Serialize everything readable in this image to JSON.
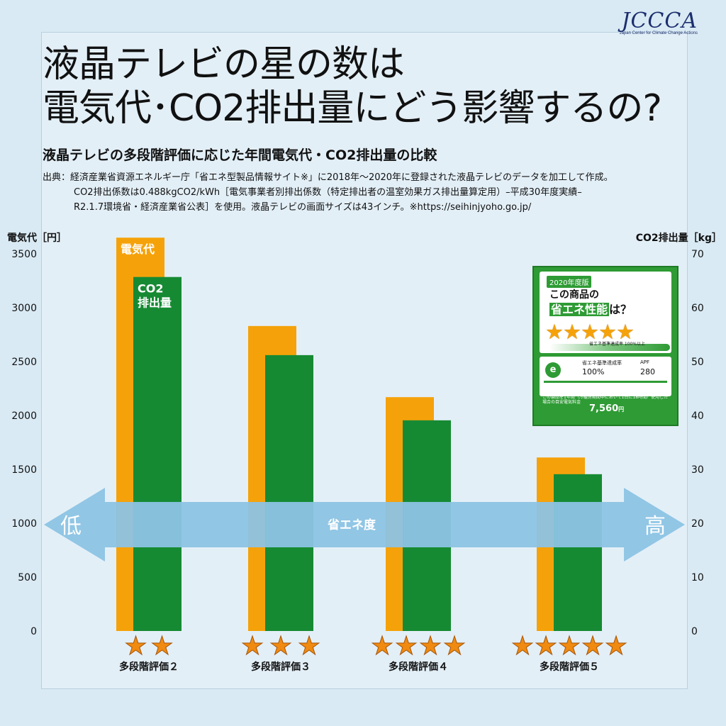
{
  "logo": {
    "text": "JCCCA",
    "sub": "Japan Center for Climate Change Actions"
  },
  "title": {
    "line1": "液晶テレビの星の数は",
    "line2": "電気代･CO2排出量にどう影響するの?"
  },
  "subtitle": "液晶テレビの多段階評価に応じた年間電気代・CO2排出量の比較",
  "source": {
    "line1": "出典：経済産業省資源エネルギー庁「省エネ型製品情報サイト※」に2018年～2020年に登録された液晶テレビのデータを加工して作成。",
    "line2": "CO2排出係数は0.488kgCO2/kWh［電気事業者別排出係数（特定排出者の温室効果ガス排出量算定用）–平成30年度実績–",
    "line3": "R2.1.7環境省・経済産業省公表］を使用。液晶テレビの画面サイズは43インチ。※https://seihinjyoho.go.jp/"
  },
  "arrow": {
    "low": "低",
    "mid": "省エネ度",
    "high": "高"
  },
  "label_card": {
    "year": "2020年度版",
    "question1": "この商品の",
    "question2_hl": "省エネ性能",
    "question2_tail": "は？",
    "stars": "★★★★★",
    "gauge_text": "省エネ基準達成率 100%以上",
    "eco_mark": "e",
    "col1_header": "省エネ基準達成率",
    "col1_value": "100%",
    "col2_header": "APF",
    "col2_value": "280",
    "note": "この製品を1年間（冷暖房期間中において1日に18時間）使用した場合の目安電気料金",
    "price": "7,560",
    "price_unit": "円"
  },
  "chart_data": {
    "type": "bar",
    "categories": [
      "多段階評価２",
      "多段階評価３",
      "多段階評価４",
      "多段階評価５"
    ],
    "stars": [
      2,
      3,
      4,
      5
    ],
    "series": [
      {
        "name": "電気代",
        "axis": "left",
        "color": "#f5a20a",
        "values": [
          3650,
          2830,
          2170,
          1610
        ]
      },
      {
        "name": "CO2排出量",
        "axis": "right",
        "color": "#168a33",
        "values": [
          65.7,
          51.2,
          39.1,
          29.1
        ]
      }
    ],
    "series_labels": {
      "electricity": "電気代",
      "co2_line1": "CO2",
      "co2_line2": "排出量"
    },
    "ylabel_left": "電気代［円］",
    "ylabel_right": "CO2排出量［kg］",
    "ylim_left": [
      0,
      3500
    ],
    "ylim_right": [
      0,
      70
    ],
    "yticks_left": [
      "0",
      "500",
      "1000",
      "1500",
      "2000",
      "2500",
      "3000",
      "3500"
    ],
    "yticks_right": [
      "0",
      "10",
      "20",
      "30",
      "40",
      "50",
      "60",
      "70"
    ],
    "grid": false
  }
}
